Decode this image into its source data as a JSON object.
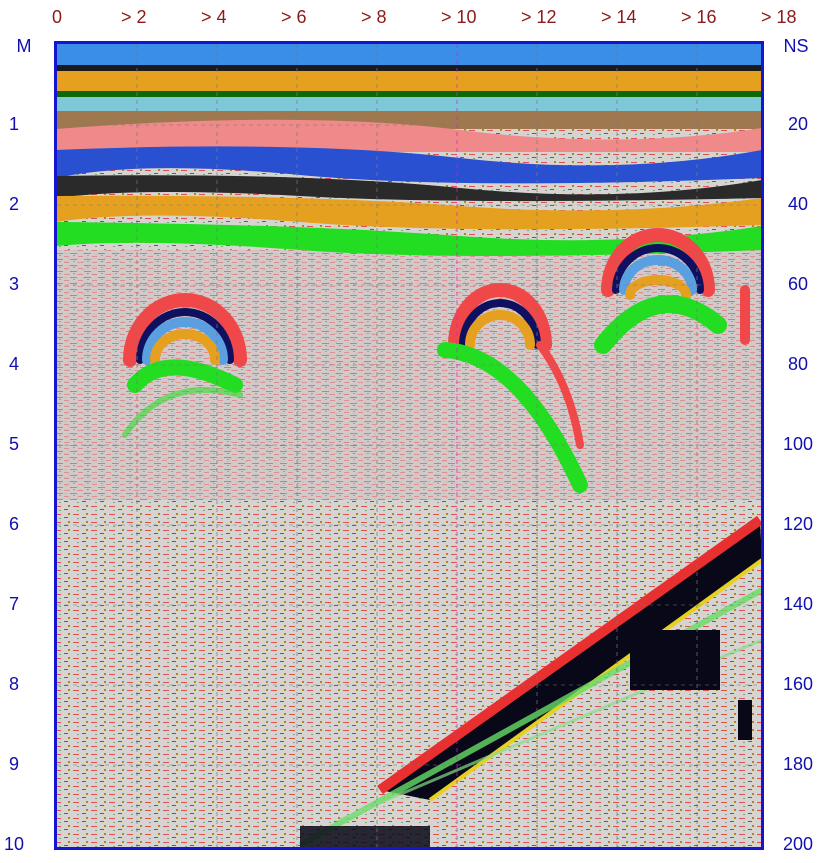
{
  "top_axis": {
    "labels": [
      "0",
      "> 2",
      "> 4",
      "> 6",
      "> 8",
      "> 10",
      "> 12",
      "> 14",
      "> 16",
      "> 18"
    ]
  },
  "left_axis": {
    "unit": "M",
    "labels": [
      "1",
      "2",
      "3",
      "4",
      "5",
      "6",
      "7",
      "8",
      "9",
      "10"
    ]
  },
  "right_axis": {
    "unit": "NS",
    "labels": [
      "20",
      "40",
      "60",
      "80",
      "100",
      "120",
      "140",
      "160",
      "180",
      "200"
    ]
  }
}
